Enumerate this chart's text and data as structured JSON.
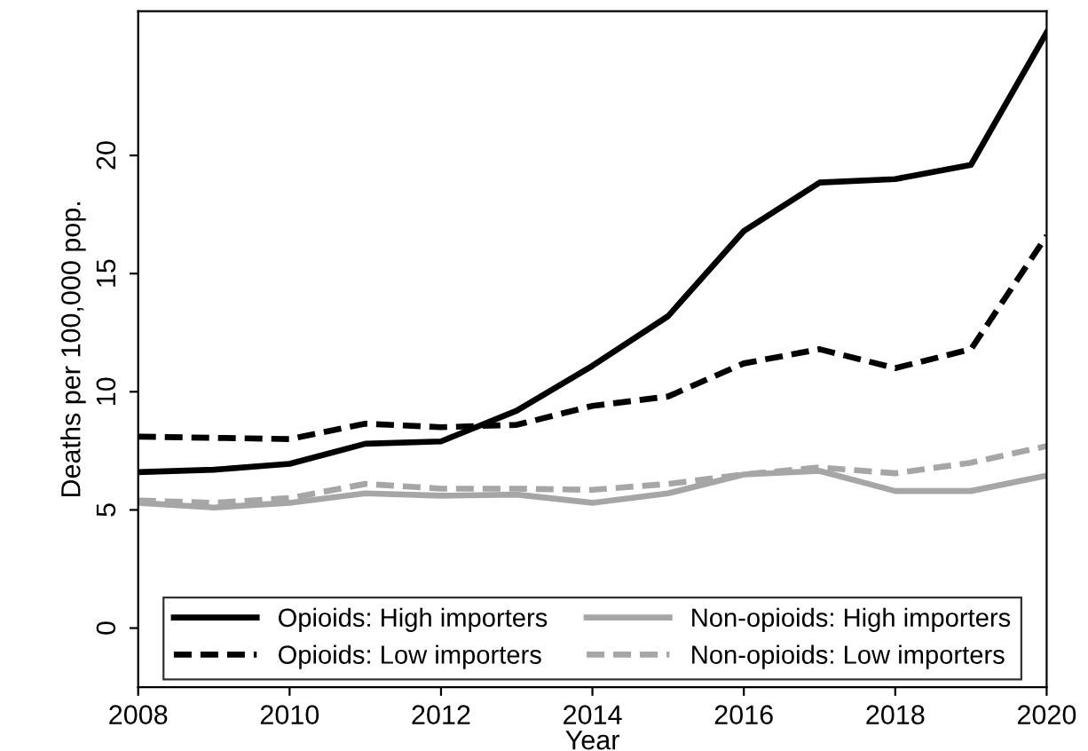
{
  "chart_data": {
    "type": "line",
    "xlabel": "Year",
    "ylabel": "Deaths per 100,000 pop.",
    "x": [
      2008,
      2009,
      2010,
      2011,
      2012,
      2013,
      2014,
      2015,
      2016,
      2017,
      2018,
      2019,
      2020
    ],
    "series": [
      {
        "name": "Opioids: High importers",
        "color": "#000000",
        "line_style": "solid",
        "values": [
          6.6,
          6.7,
          6.95,
          7.8,
          7.9,
          9.2,
          11.1,
          13.2,
          16.8,
          18.85,
          19.0,
          19.6,
          25.2
        ]
      },
      {
        "name": "Opioids: Low importers",
        "color": "#000000",
        "line_style": "dashed",
        "values": [
          8.1,
          8.05,
          8.0,
          8.65,
          8.5,
          8.6,
          9.4,
          9.8,
          11.2,
          11.8,
          11.0,
          11.8,
          16.6
        ]
      },
      {
        "name": "Non-opioids: High importers",
        "color": "#a6a6a6",
        "line_style": "solid",
        "values": [
          5.3,
          5.1,
          5.3,
          5.7,
          5.6,
          5.65,
          5.3,
          5.7,
          6.5,
          6.65,
          5.8,
          5.8,
          6.45
        ]
      },
      {
        "name": "Non-opioids: Low importers",
        "color": "#a6a6a6",
        "line_style": "dashed",
        "values": [
          5.4,
          5.3,
          5.5,
          6.1,
          5.9,
          5.9,
          5.85,
          6.1,
          6.5,
          6.8,
          6.55,
          7.0,
          7.7
        ]
      }
    ],
    "xlim": [
      2008,
      2020
    ],
    "xticks": [
      2008,
      2010,
      2012,
      2014,
      2016,
      2018,
      2020
    ],
    "ylim": [
      -2.5,
      26.1
    ],
    "yticks": [
      0,
      5,
      10,
      15,
      20
    ],
    "grid": false,
    "legend": "bottom",
    "marker": "none"
  }
}
